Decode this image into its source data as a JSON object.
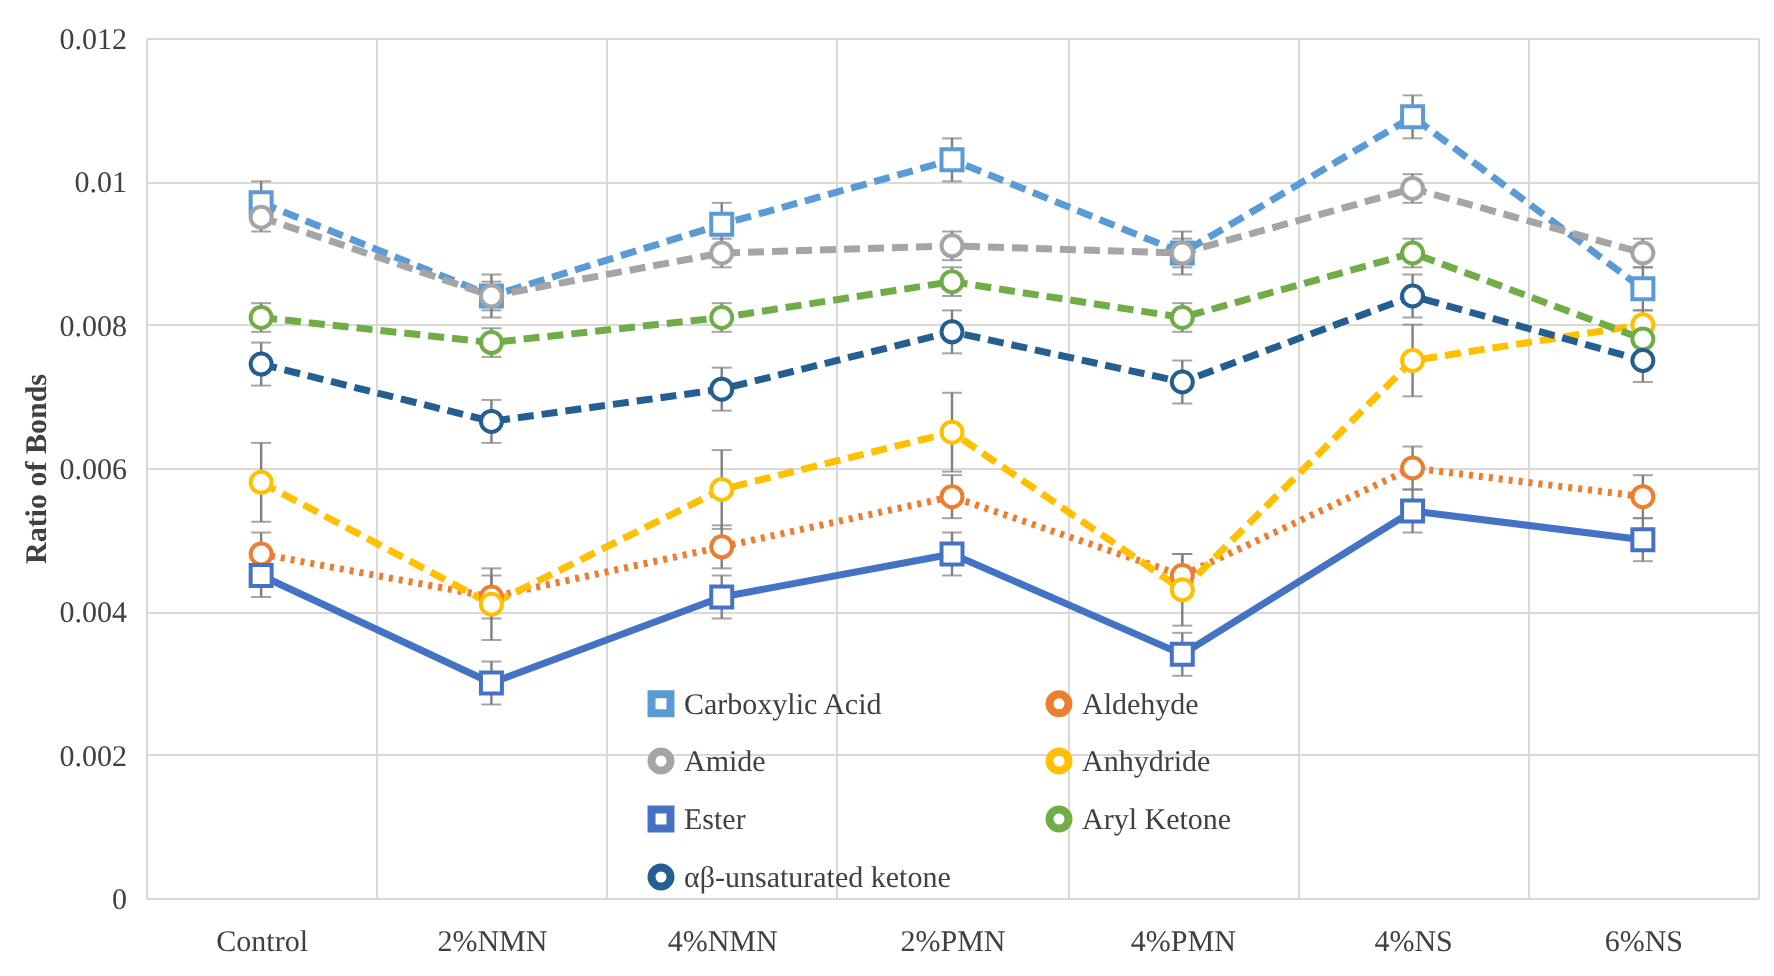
{
  "chart_data": {
    "type": "line",
    "ylabel": "Ratio of Bonds",
    "categories": [
      "Control",
      "2%NMN",
      "4%NMN",
      "2%PMN",
      "4%PMN",
      "4%NS",
      "6%NS"
    ],
    "ylim": [
      0,
      0.012
    ],
    "yticks": [
      0,
      0.002,
      0.004,
      0.006,
      0.008,
      0.01,
      0.012
    ],
    "grid": true,
    "legend": "bottom",
    "series": [
      {
        "name": "Carboxylic Acid",
        "color": "#5b9bd5",
        "marker": "square",
        "line_style": "dashed",
        "values": [
          0.0097,
          0.0084,
          0.0094,
          0.0103,
          0.009,
          0.0109,
          0.0085
        ],
        "errors": [
          0.0003,
          0.0003,
          0.0003,
          0.0003,
          0.0003,
          0.0003,
          0.0003
        ]
      },
      {
        "name": "Aldehyde",
        "color": "#ed7d31",
        "marker": "circle",
        "line_style": "dotted",
        "values": [
          0.0048,
          0.0042,
          0.0049,
          0.0056,
          0.0045,
          0.006,
          0.0056
        ],
        "errors": [
          0.0003,
          0.0003,
          0.0003,
          0.0003,
          0.0003,
          0.0003,
          0.0003
        ]
      },
      {
        "name": "Amide",
        "color": "#a5a5a5",
        "marker": "circle",
        "line_style": "dashed",
        "values": [
          0.0095,
          0.0084,
          0.009,
          0.0091,
          0.009,
          0.0099,
          0.009
        ],
        "errors": [
          0.0002,
          0.0002,
          0.0002,
          0.0002,
          0.0002,
          0.0002,
          0.0002
        ]
      },
      {
        "name": "Anhydride",
        "color": "#ffc000",
        "marker": "circle",
        "line_style": "dashed",
        "values": [
          0.0058,
          0.0041,
          0.0057,
          0.0065,
          0.0043,
          0.0075,
          0.008
        ],
        "errors": [
          0.00055,
          0.0005,
          0.00055,
          0.00055,
          0.0005,
          0.0005,
          0.0002
        ]
      },
      {
        "name": "Ester",
        "color": "#4472c4",
        "marker": "square",
        "line_style": "solid",
        "values": [
          0.0045,
          0.003,
          0.0042,
          0.0048,
          0.0034,
          0.0054,
          0.005
        ],
        "errors": [
          0.0003,
          0.0003,
          0.0003,
          0.0003,
          0.0003,
          0.0003,
          0.0003
        ]
      },
      {
        "name": "Aryl Ketone",
        "color": "#70ad47",
        "marker": "circle",
        "line_style": "dashed",
        "values": [
          0.0081,
          0.00775,
          0.0081,
          0.0086,
          0.0081,
          0.009,
          0.0078
        ],
        "errors": [
          0.0002,
          0.0002,
          0.0002,
          0.0002,
          0.0002,
          0.0002,
          0.0002
        ]
      },
      {
        "name": "αβ-unsaturated ketone",
        "color": "#255e91",
        "marker": "circle",
        "line_style": "dashed",
        "values": [
          0.00745,
          0.00665,
          0.0071,
          0.0079,
          0.0072,
          0.0084,
          0.0075
        ],
        "errors": [
          0.0003,
          0.0003,
          0.0003,
          0.0003,
          0.0003,
          0.0003,
          0.0003
        ]
      }
    ]
  }
}
